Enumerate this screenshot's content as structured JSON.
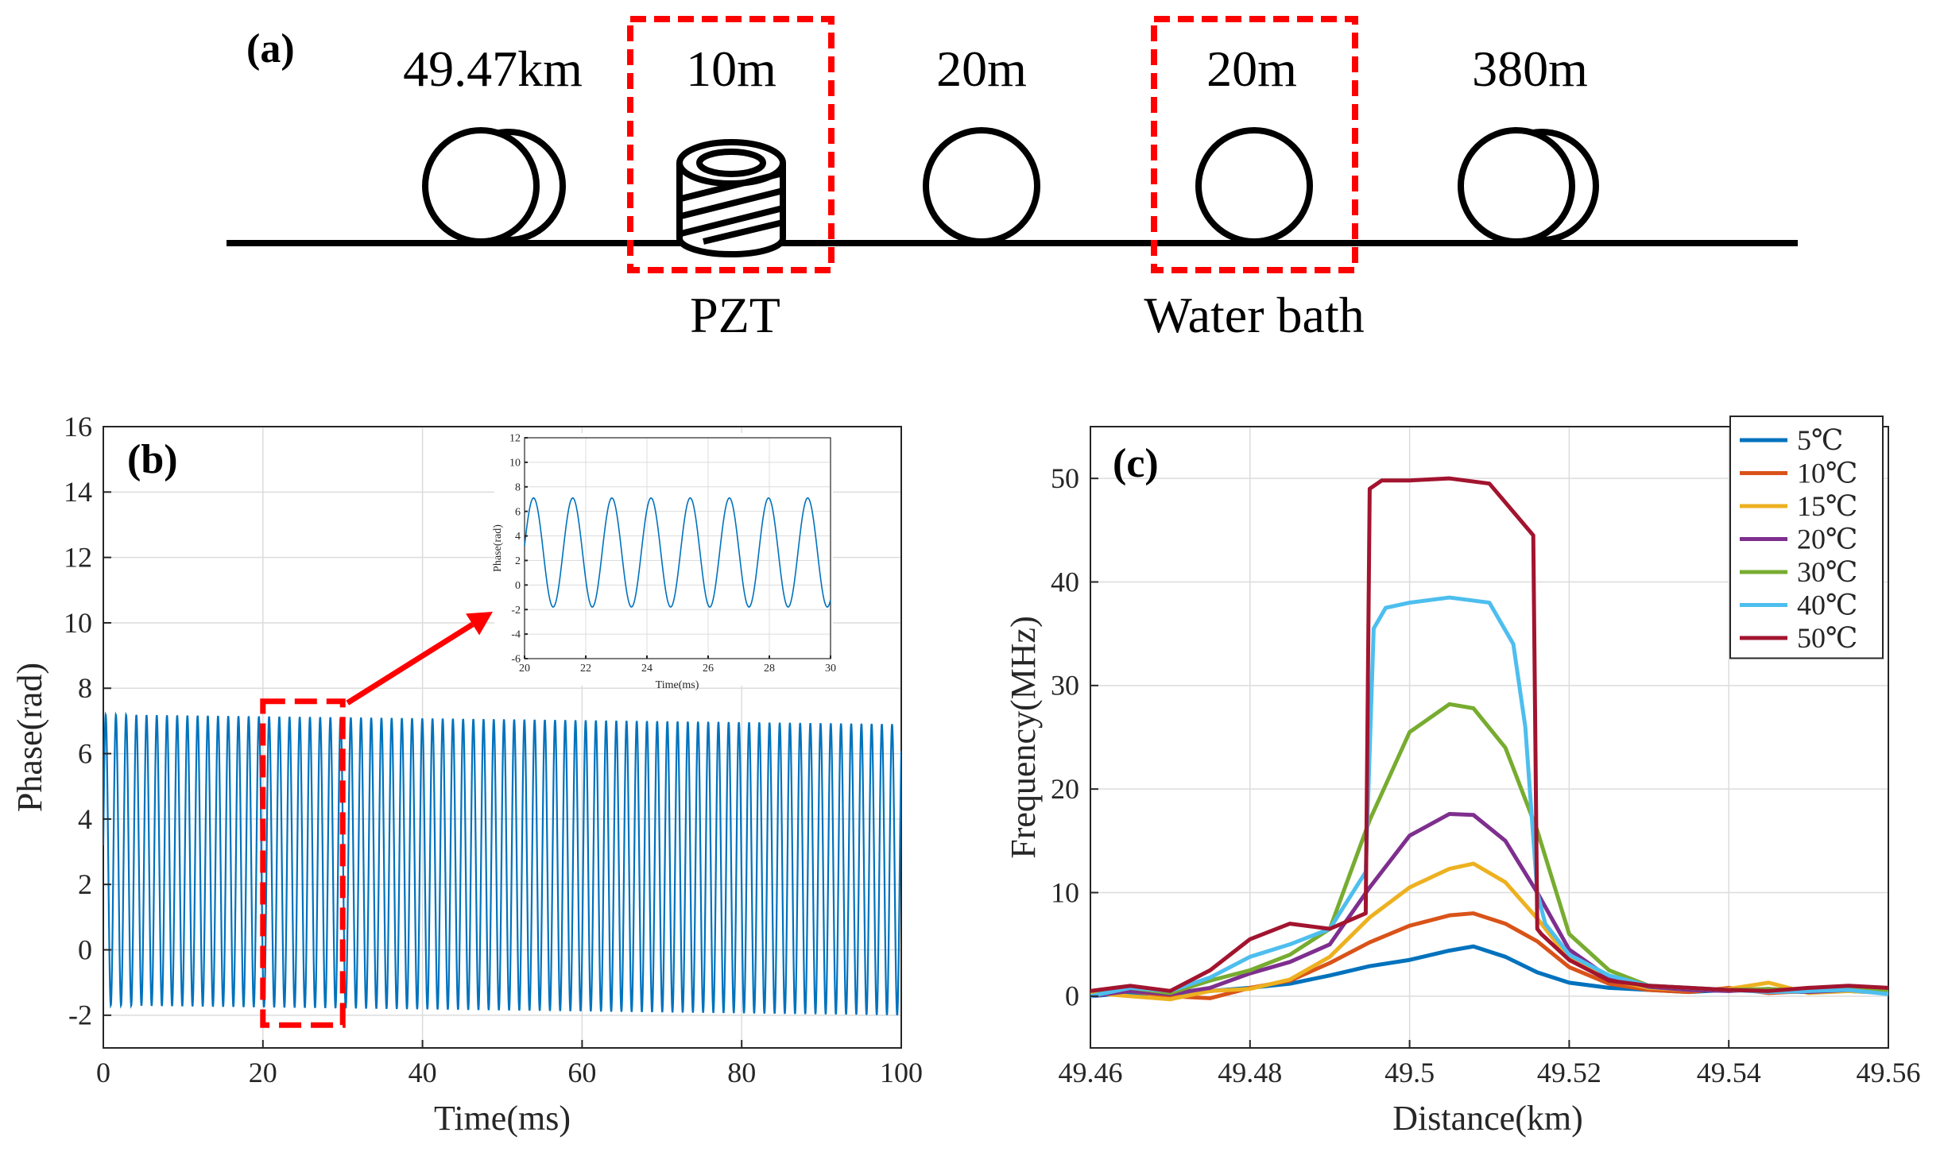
{
  "panel_a": {
    "letter": "(a)",
    "segments": [
      {
        "length": "49.47km",
        "kind": "double-coil"
      },
      {
        "length": "10m",
        "kind": "pzt-cylinder",
        "boxed": true,
        "caption": "PZT"
      },
      {
        "length": "20m",
        "kind": "coil"
      },
      {
        "length": "20m",
        "kind": "coil",
        "boxed": true,
        "caption": "Water bath"
      },
      {
        "length": "380m",
        "kind": "double-coil"
      }
    ],
    "box_color": "#ff0000"
  },
  "chart_data": [
    {
      "id": "b",
      "letter": "(b)",
      "type": "line",
      "title": "",
      "xlabel": "Time(ms)",
      "ylabel": "Phase(rad)",
      "xlim": [
        0,
        100
      ],
      "ylim": [
        -3,
        16
      ],
      "xticks": [
        0,
        20,
        40,
        60,
        80,
        100
      ],
      "yticks": [
        -2,
        0,
        2,
        4,
        6,
        8,
        10,
        12,
        14,
        16
      ],
      "grid": true,
      "series": [
        {
          "signal": "sinusoid",
          "color": "#0072bd",
          "start_phase_rad": 3.2,
          "max_rad": [
            7.2,
            6.9
          ],
          "min_rad": [
            -1.7,
            -2.0
          ],
          "period_ms": 1.28,
          "x_range": [
            0,
            100
          ]
        }
      ],
      "zoom_box": {
        "x": [
          20,
          30
        ],
        "y": [
          -2.3,
          7.6
        ],
        "color": "#ff0000"
      },
      "inset": {
        "xlabel": "Time(ms)",
        "ylabel": "Phase(rad)",
        "xlim": [
          20,
          30
        ],
        "ylim": [
          -6,
          12
        ],
        "xticks": [
          20,
          22,
          24,
          26,
          28,
          30
        ],
        "yticks": [
          -6,
          -4,
          -2,
          0,
          2,
          4,
          6,
          8,
          10,
          12
        ],
        "grid": true,
        "series": [
          {
            "signal": "sinusoid",
            "color": "#0072bd",
            "start_phase_rad": 3.2,
            "max_rad": 7.1,
            "min_rad": -1.8,
            "period_ms": 1.28,
            "x_range": [
              20,
              30
            ]
          }
        ]
      }
    },
    {
      "id": "c",
      "letter": "(c)",
      "type": "line",
      "title": "",
      "xlabel": "Distance(km)",
      "ylabel": "Frequency(MHz)",
      "xlim": [
        49.46,
        49.56
      ],
      "ylim": [
        -5,
        55
      ],
      "xticks": [
        49.46,
        49.48,
        49.5,
        49.52,
        49.54,
        49.56
      ],
      "xtick_labels": [
        "49.46",
        "49.48",
        "49.5",
        "49.52",
        "49.54",
        "49.56"
      ],
      "yticks": [
        0,
        10,
        20,
        30,
        40,
        50
      ],
      "grid": true,
      "legend": "top-right",
      "series": [
        {
          "name": "5℃",
          "color": "#0072bd",
          "x": [
            49.46,
            49.465,
            49.47,
            49.475,
            49.48,
            49.485,
            49.49,
            49.495,
            49.5,
            49.505,
            49.508,
            49.512,
            49.516,
            49.52,
            49.525,
            49.53,
            49.535,
            49.54,
            49.545,
            49.55,
            49.555,
            49.56
          ],
          "y": [
            0,
            0.3,
            0.2,
            0.5,
            0.8,
            1.2,
            2.0,
            2.9,
            3.5,
            4.4,
            4.8,
            3.8,
            2.3,
            1.3,
            0.8,
            0.6,
            0.4,
            0.6,
            0.5,
            0.4,
            0.5,
            0.3
          ]
        },
        {
          "name": "10℃",
          "color": "#d95319",
          "x": [
            49.46,
            49.465,
            49.47,
            49.475,
            49.48,
            49.485,
            49.49,
            49.495,
            49.5,
            49.505,
            49.508,
            49.512,
            49.516,
            49.52,
            49.525,
            49.53,
            49.535,
            49.54,
            49.545,
            49.55,
            49.555,
            49.56
          ],
          "y": [
            0.2,
            0.5,
            0.0,
            -0.2,
            0.8,
            1.5,
            3.2,
            5.2,
            6.8,
            7.8,
            8.0,
            7.0,
            5.3,
            2.8,
            1.2,
            0.6,
            0.4,
            0.8,
            0.3,
            0.5,
            0.6,
            0.4
          ]
        },
        {
          "name": "15℃",
          "color": "#edb120",
          "x": [
            49.46,
            49.465,
            49.47,
            49.475,
            49.48,
            49.485,
            49.49,
            49.495,
            49.5,
            49.505,
            49.508,
            49.512,
            49.516,
            49.52,
            49.525,
            49.53,
            49.535,
            49.54,
            49.545,
            49.55,
            49.555,
            49.56
          ],
          "y": [
            0.3,
            0.0,
            -0.3,
            0.5,
            0.7,
            1.6,
            3.8,
            7.6,
            10.5,
            12.3,
            12.8,
            11.0,
            7.5,
            3.6,
            1.6,
            0.8,
            0.6,
            0.7,
            1.3,
            0.3,
            0.5,
            0.3
          ]
        },
        {
          "name": "20℃",
          "color": "#7e2f8e",
          "x": [
            49.46,
            49.465,
            49.47,
            49.475,
            49.48,
            49.485,
            49.49,
            49.495,
            49.5,
            49.505,
            49.508,
            49.512,
            49.516,
            49.52,
            49.525,
            49.53,
            49.535,
            49.54,
            49.545,
            49.55,
            49.555,
            49.56
          ],
          "y": [
            0.0,
            0.5,
            0.2,
            0.8,
            2.2,
            3.3,
            5.0,
            10.5,
            15.5,
            17.6,
            17.5,
            15.0,
            10.0,
            4.5,
            1.8,
            0.9,
            0.6,
            0.5,
            0.7,
            0.4,
            0.6,
            0.5
          ]
        },
        {
          "name": "30℃",
          "color": "#77ac30",
          "x": [
            49.46,
            49.465,
            49.47,
            49.475,
            49.48,
            49.485,
            49.49,
            49.495,
            49.5,
            49.505,
            49.508,
            49.512,
            49.516,
            49.52,
            49.525,
            49.53,
            49.535,
            49.54,
            49.545,
            49.55,
            49.555,
            49.56
          ],
          "y": [
            0.5,
            0.8,
            0.3,
            1.5,
            2.5,
            4.0,
            6.5,
            17.0,
            25.5,
            28.2,
            27.8,
            24.0,
            16.0,
            6.0,
            2.5,
            1.0,
            0.8,
            0.6,
            0.7,
            0.5,
            0.9,
            0.4
          ]
        },
        {
          "name": "40℃",
          "color": "#4dbeee",
          "x": [
            49.46,
            49.465,
            49.47,
            49.475,
            49.48,
            49.485,
            49.49,
            49.4945,
            49.4955,
            49.497,
            49.5,
            49.505,
            49.51,
            49.513,
            49.5145,
            49.516,
            49.517,
            49.52,
            49.525,
            49.53,
            49.535,
            49.54,
            49.545,
            49.55,
            49.555,
            49.56
          ],
          "y": [
            0.0,
            0.8,
            0.5,
            1.8,
            3.8,
            5.0,
            6.5,
            12.0,
            35.5,
            37.5,
            38.0,
            38.5,
            38.0,
            34.0,
            26.0,
            10.0,
            7.0,
            4.0,
            2.0,
            1.0,
            0.8,
            0.6,
            0.4,
            0.5,
            0.6,
            0.2
          ]
        },
        {
          "name": "50℃",
          "color": "#a2142f",
          "x": [
            49.46,
            49.465,
            49.47,
            49.475,
            49.48,
            49.485,
            49.49,
            49.4945,
            49.495,
            49.4965,
            49.5,
            49.505,
            49.51,
            49.5155,
            49.516,
            49.5165,
            49.52,
            49.525,
            49.53,
            49.535,
            49.54,
            49.545,
            49.55,
            49.555,
            49.56
          ],
          "y": [
            0.5,
            1.0,
            0.5,
            2.5,
            5.5,
            7.0,
            6.5,
            8.0,
            49.0,
            49.8,
            49.8,
            50.0,
            49.5,
            44.5,
            6.5,
            6.0,
            3.5,
            1.5,
            1.0,
            0.8,
            0.6,
            0.5,
            0.8,
            1.0,
            0.8
          ]
        }
      ]
    }
  ]
}
